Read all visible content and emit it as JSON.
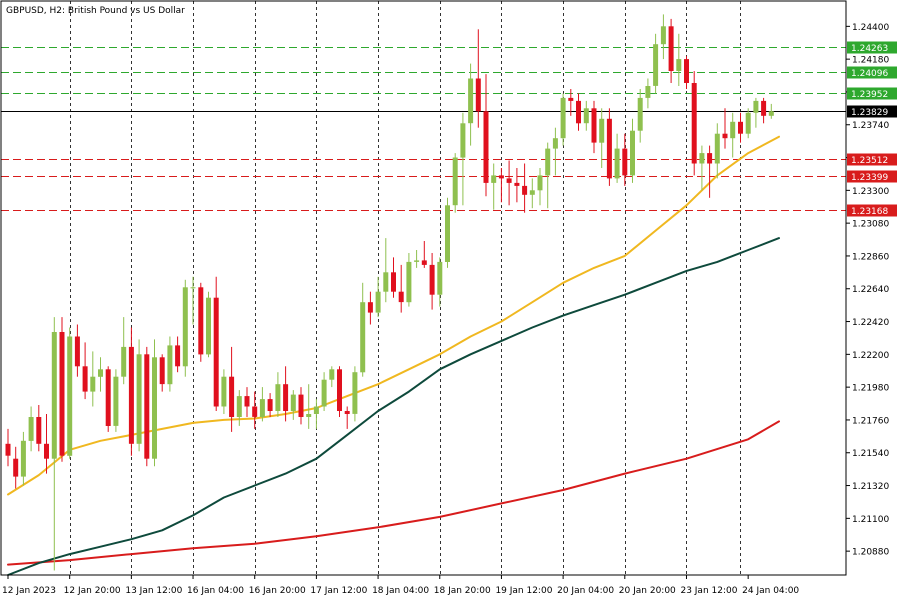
{
  "chart_data": {
    "type": "candlestick",
    "title": "GBPUSD, H2:  British Pound vs US Dollar",
    "timeframe": "H2",
    "y_range": [
      1.2072,
      1.2457
    ],
    "y_ticks": [
      "1.24400",
      "1.24180",
      "1.23960",
      "1.23740",
      "1.23520",
      "1.23300",
      "1.23080",
      "1.22860",
      "1.22640",
      "1.22420",
      "1.22200",
      "1.21980",
      "1.21760",
      "1.21540",
      "1.21320",
      "1.21100",
      "1.20880"
    ],
    "x_ticks": [
      "12 Jan 2023",
      "12 Jan 20:00",
      "13 Jan 12:00",
      "16 Jan 04:00",
      "16 Jan 20:00",
      "17 Jan 12:00",
      "18 Jan 04:00",
      "18 Jan 20:00",
      "19 Jan 12:00",
      "20 Jan 04:00",
      "20 Jan 20:00",
      "23 Jan 12:00",
      "24 Jan 04:00"
    ],
    "x_tick_bar_index": [
      0,
      8,
      16,
      24,
      32,
      40,
      48,
      56,
      64,
      72,
      80,
      88,
      96
    ],
    "vertical_grid_bar_index": [
      8,
      16,
      24,
      32,
      40,
      48,
      56,
      64,
      72,
      80,
      88,
      95
    ],
    "levels": {
      "resistance": [
        {
          "price": 1.24263,
          "label": "1.24263"
        },
        {
          "price": 1.24096,
          "label": "1.24096"
        },
        {
          "price": 1.23952,
          "label": "1.23952"
        }
      ],
      "support": [
        {
          "price": 1.23512,
          "label": "1.23512"
        },
        {
          "price": 1.23399,
          "label": "1.23399"
        },
        {
          "price": 1.23168,
          "label": "1.23168"
        }
      ],
      "current": {
        "price": 1.23829,
        "label": "1.23829"
      }
    },
    "colors": {
      "bull": "#8fc04f",
      "bear": "#e0101e",
      "doji": "#8fc04f",
      "ma_fast": "#f0b820",
      "ma_mid": "#0e4a3c",
      "ma_slow": "#d81c1c",
      "resistance": "#2ea82e",
      "support": "#d81c1c",
      "grid": "#000000",
      "current_line": "#000000"
    },
    "candles": [
      [
        1.216,
        1.217,
        1.2145,
        1.2152
      ],
      [
        1.215,
        1.2158,
        1.213,
        1.2138
      ],
      [
        1.2138,
        1.2168,
        1.2132,
        1.2162
      ],
      [
        1.2162,
        1.2185,
        1.2155,
        1.2178
      ],
      [
        1.2178,
        1.2186,
        1.2155,
        1.216
      ],
      [
        1.216,
        1.218,
        1.214,
        1.215
      ],
      [
        1.215,
        1.2245,
        1.2075,
        1.2235
      ],
      [
        1.2235,
        1.2245,
        1.2148,
        1.2152
      ],
      [
        1.2152,
        1.2238,
        1.215,
        1.2232
      ],
      [
        1.2232,
        1.224,
        1.2205,
        1.2212
      ],
      [
        1.2212,
        1.2228,
        1.219,
        1.2195
      ],
      [
        1.2195,
        1.2222,
        1.2185,
        1.2205
      ],
      [
        1.2205,
        1.2218,
        1.2195,
        1.221
      ],
      [
        1.221,
        1.2212,
        1.2168,
        1.2172
      ],
      [
        1.2172,
        1.221,
        1.2168,
        1.2205
      ],
      [
        1.2205,
        1.2245,
        1.22,
        1.2225
      ],
      [
        1.2225,
        1.2238,
        1.2152,
        1.216
      ],
      [
        1.216,
        1.223,
        1.2155,
        1.222
      ],
      [
        1.222,
        1.2225,
        1.2145,
        1.215
      ],
      [
        1.215,
        1.223,
        1.2145,
        1.2218
      ],
      [
        1.2218,
        1.222,
        1.2195,
        1.22
      ],
      [
        1.22,
        1.2232,
        1.2195,
        1.2226
      ],
      [
        1.2226,
        1.2232,
        1.2208,
        1.2212
      ],
      [
        1.2212,
        1.227,
        1.2205,
        1.2265
      ],
      [
        1.2265,
        1.2272,
        1.224,
        1.2265
      ],
      [
        1.2265,
        1.2268,
        1.2215,
        1.222
      ],
      [
        1.222,
        1.2262,
        1.2218,
        1.2258
      ],
      [
        1.2258,
        1.2272,
        1.2182,
        1.2185
      ],
      [
        1.2185,
        1.221,
        1.218,
        1.2205
      ],
      [
        1.2205,
        1.2225,
        1.2168,
        1.2178
      ],
      [
        1.2178,
        1.2196,
        1.2172,
        1.2192
      ],
      [
        1.2192,
        1.2198,
        1.2178,
        1.2185
      ],
      [
        1.2185,
        1.2195,
        1.217,
        1.2178
      ],
      [
        1.2178,
        1.2198,
        1.2175,
        1.219
      ],
      [
        1.219,
        1.2194,
        1.2178,
        1.2182
      ],
      [
        1.2182,
        1.2208,
        1.2178,
        1.22
      ],
      [
        1.22,
        1.2212,
        1.2175,
        1.2182
      ],
      [
        1.2182,
        1.2196,
        1.2176,
        1.2193
      ],
      [
        1.2193,
        1.2198,
        1.2173,
        1.2178
      ],
      [
        1.2178,
        1.22,
        1.217,
        1.218
      ],
      [
        1.218,
        1.219,
        1.217,
        1.2185
      ],
      [
        1.2185,
        1.2208,
        1.2182,
        1.2203
      ],
      [
        1.2203,
        1.2212,
        1.2198,
        1.221
      ],
      [
        1.221,
        1.2212,
        1.2178,
        1.2182
      ],
      [
        1.2182,
        1.2185,
        1.217,
        1.218
      ],
      [
        1.218,
        1.2212,
        1.2175,
        1.2208
      ],
      [
        1.2208,
        1.2268,
        1.2205,
        1.2255
      ],
      [
        1.2255,
        1.2262,
        1.224,
        1.2248
      ],
      [
        1.2248,
        1.2272,
        1.2245,
        1.2262
      ],
      [
        1.2262,
        1.2298,
        1.2255,
        1.2275
      ],
      [
        1.2275,
        1.2285,
        1.2258,
        1.2262
      ],
      [
        1.2262,
        1.228,
        1.2248,
        1.2255
      ],
      [
        1.2255,
        1.2288,
        1.2252,
        1.2282
      ],
      [
        1.2282,
        1.229,
        1.2278,
        1.2283
      ],
      [
        1.2283,
        1.2296,
        1.2278,
        1.228
      ],
      [
        1.228,
        1.2288,
        1.225,
        1.226
      ],
      [
        1.226,
        1.2285,
        1.2252,
        1.2282
      ],
      [
        1.2282,
        1.2325,
        1.2278,
        1.232
      ],
      [
        1.232,
        1.2355,
        1.2315,
        1.2352
      ],
      [
        1.2352,
        1.2382,
        1.232,
        1.2375
      ],
      [
        1.2375,
        1.2415,
        1.236,
        1.2405
      ],
      [
        1.2405,
        1.2438,
        1.2372,
        1.2383
      ],
      [
        1.2383,
        1.2408,
        1.2326,
        1.2335
      ],
      [
        1.2335,
        1.2348,
        1.2317,
        1.234
      ],
      [
        1.234,
        1.2345,
        1.2322,
        1.2338
      ],
      [
        1.2338,
        1.235,
        1.232,
        1.2335
      ],
      [
        1.2335,
        1.2345,
        1.2322,
        1.2333
      ],
      [
        1.2333,
        1.2348,
        1.2315,
        1.2327
      ],
      [
        1.2327,
        1.2338,
        1.2318,
        1.233
      ],
      [
        1.233,
        1.2345,
        1.232,
        1.234
      ],
      [
        1.234,
        1.2362,
        1.2318,
        1.2358
      ],
      [
        1.2358,
        1.2372,
        1.234,
        1.2365
      ],
      [
        1.2365,
        1.2395,
        1.236,
        1.2392
      ],
      [
        1.2392,
        1.2398,
        1.238,
        1.239
      ],
      [
        1.239,
        1.2395,
        1.237,
        1.2375
      ],
      [
        1.2375,
        1.239,
        1.237,
        1.2385
      ],
      [
        1.2385,
        1.239,
        1.2355,
        1.2362
      ],
      [
        1.2362,
        1.2385,
        1.2345,
        1.2378
      ],
      [
        1.2378,
        1.2385,
        1.2333,
        1.2338
      ],
      [
        1.2338,
        1.2368,
        1.2335,
        1.2358
      ],
      [
        1.2358,
        1.2368,
        1.2333,
        1.234
      ],
      [
        1.234,
        1.2378,
        1.2335,
        1.237
      ],
      [
        1.237,
        1.2398,
        1.2362,
        1.2392
      ],
      [
        1.2392,
        1.2405,
        1.2385,
        1.24
      ],
      [
        1.24,
        1.2435,
        1.2395,
        1.2428
      ],
      [
        1.2428,
        1.2448,
        1.2418,
        1.244
      ],
      [
        1.244,
        1.2445,
        1.2402,
        1.241
      ],
      [
        1.241,
        1.2435,
        1.24,
        1.2418
      ],
      [
        1.2418,
        1.242,
        1.2398,
        1.2402
      ],
      [
        1.2402,
        1.241,
        1.234,
        1.2348
      ],
      [
        1.2348,
        1.236,
        1.233,
        1.2355
      ],
      [
        1.2355,
        1.236,
        1.2325,
        1.2348
      ],
      [
        1.2348,
        1.2375,
        1.2338,
        1.2368
      ],
      [
        1.2368,
        1.2385,
        1.2358,
        1.2365
      ],
      [
        1.2365,
        1.2382,
        1.2352,
        1.2376
      ],
      [
        1.2376,
        1.2382,
        1.2362,
        1.2368
      ],
      [
        1.2368,
        1.2385,
        1.2365,
        1.2382
      ],
      [
        1.2382,
        1.2392,
        1.2372,
        1.239
      ],
      [
        1.239,
        1.2392,
        1.2375,
        1.238
      ],
      [
        1.238,
        1.2388,
        1.2378,
        1.2383
      ]
    ],
    "ma_fast": [
      [
        0,
        1.2126
      ],
      [
        4,
        1.2139
      ],
      [
        8,
        1.2156
      ],
      [
        12,
        1.2162
      ],
      [
        16,
        1.2166
      ],
      [
        20,
        1.217
      ],
      [
        24,
        1.2174
      ],
      [
        28,
        1.2176
      ],
      [
        32,
        1.2177
      ],
      [
        36,
        1.218
      ],
      [
        40,
        1.2184
      ],
      [
        44,
        1.2192
      ],
      [
        48,
        1.22
      ],
      [
        52,
        1.221
      ],
      [
        56,
        1.222
      ],
      [
        60,
        1.2232
      ],
      [
        64,
        1.2242
      ],
      [
        68,
        1.2255
      ],
      [
        72,
        1.2268
      ],
      [
        76,
        1.2278
      ],
      [
        80,
        1.2286
      ],
      [
        84,
        1.2303
      ],
      [
        88,
        1.232
      ],
      [
        92,
        1.234
      ],
      [
        96,
        1.2355
      ],
      [
        100,
        1.2366
      ]
    ],
    "ma_mid": [
      [
        0,
        1.2072
      ],
      [
        4,
        1.208
      ],
      [
        8,
        1.2086
      ],
      [
        12,
        1.2091
      ],
      [
        16,
        1.2096
      ],
      [
        20,
        1.2102
      ],
      [
        24,
        1.2112
      ],
      [
        28,
        1.2124
      ],
      [
        32,
        1.2132
      ],
      [
        36,
        1.214
      ],
      [
        40,
        1.215
      ],
      [
        44,
        1.2166
      ],
      [
        48,
        1.2182
      ],
      [
        52,
        1.2195
      ],
      [
        56,
        1.221
      ],
      [
        60,
        1.222
      ],
      [
        64,
        1.2229
      ],
      [
        68,
        1.2238
      ],
      [
        72,
        1.2246
      ],
      [
        76,
        1.2253
      ],
      [
        80,
        1.226
      ],
      [
        84,
        1.2268
      ],
      [
        88,
        1.2276
      ],
      [
        92,
        1.2282
      ],
      [
        96,
        1.229
      ],
      [
        100,
        1.2298
      ]
    ],
    "ma_slow": [
      [
        0,
        1.2079
      ],
      [
        8,
        1.2082
      ],
      [
        16,
        1.2086
      ],
      [
        24,
        1.209
      ],
      [
        32,
        1.2093
      ],
      [
        40,
        1.2098
      ],
      [
        48,
        1.2104
      ],
      [
        56,
        1.2111
      ],
      [
        64,
        1.212
      ],
      [
        72,
        1.2129
      ],
      [
        80,
        1.214
      ],
      [
        88,
        1.215
      ],
      [
        96,
        1.2163
      ],
      [
        100,
        1.2175
      ]
    ]
  }
}
